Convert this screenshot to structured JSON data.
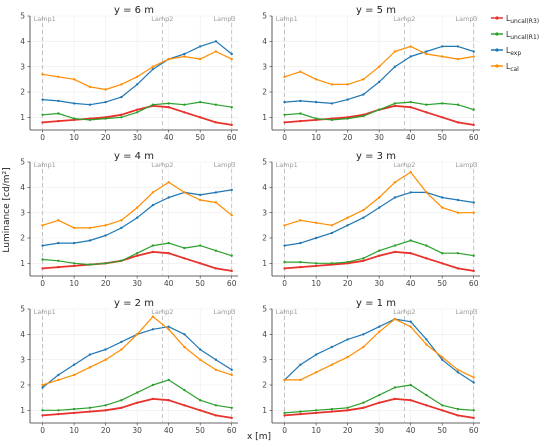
{
  "figure": {
    "ylabel": "Luminance [cd/m²]",
    "xlabel": "x [m]"
  },
  "legend": [
    {
      "key": "L_uncal_R3",
      "base": "L",
      "sub": "uncal(R3)",
      "color": "#e8312b"
    },
    {
      "key": "L_uncal_R1",
      "base": "L",
      "sub": "uncal(R1)",
      "color": "#2ca02c"
    },
    {
      "key": "L_exp",
      "base": "L",
      "sub": "exp",
      "color": "#1f77b4"
    },
    {
      "key": "L_cal",
      "base": "L",
      "sub": "cal",
      "color": "#ff8c00"
    }
  ],
  "chart_data": [
    {
      "type": "line",
      "title": "y = 6 m",
      "xlim": [
        -4,
        62
      ],
      "ylim": [
        0.5,
        5
      ],
      "x_ticks": [
        0,
        10,
        20,
        30,
        40,
        50,
        60
      ],
      "y_ticks": [
        1,
        2,
        3,
        4,
        5
      ],
      "lamps": [
        {
          "label": "Lamp1",
          "x": 0
        },
        {
          "label": "Lamp2",
          "x": 38
        },
        {
          "label": "Lamp3",
          "x": 60
        }
      ],
      "x": [
        0,
        5,
        10,
        15,
        20,
        25,
        30,
        35,
        40,
        45,
        50,
        55,
        60
      ],
      "series": [
        {
          "key": "L_uncal_R3",
          "values": [
            0.8,
            0.85,
            0.9,
            0.95,
            1.0,
            1.1,
            1.3,
            1.45,
            1.4,
            1.2,
            1.0,
            0.8,
            0.7
          ]
        },
        {
          "key": "L_uncal_R1",
          "values": [
            1.1,
            1.15,
            0.95,
            0.9,
            0.95,
            1.0,
            1.2,
            1.5,
            1.55,
            1.5,
            1.6,
            1.5,
            1.4
          ]
        },
        {
          "key": "L_exp",
          "values": [
            1.7,
            1.65,
            1.55,
            1.5,
            1.6,
            1.8,
            2.3,
            2.9,
            3.3,
            3.5,
            3.8,
            4.0,
            3.5
          ]
        },
        {
          "key": "L_cal",
          "values": [
            2.7,
            2.6,
            2.5,
            2.2,
            2.1,
            2.3,
            2.6,
            3.0,
            3.3,
            3.4,
            3.3,
            3.6,
            3.3
          ]
        }
      ]
    },
    {
      "type": "line",
      "title": "y = 5 m",
      "xlim": [
        -4,
        62
      ],
      "ylim": [
        0.5,
        5
      ],
      "x_ticks": [
        0,
        10,
        20,
        30,
        40,
        50,
        60
      ],
      "y_ticks": [
        1,
        2,
        3,
        4,
        5
      ],
      "lamps": [
        {
          "label": "Lamp1",
          "x": 0
        },
        {
          "label": "Lamp2",
          "x": 38
        },
        {
          "label": "Lamp3",
          "x": 60
        }
      ],
      "x": [
        0,
        5,
        10,
        15,
        20,
        25,
        30,
        35,
        40,
        45,
        50,
        55,
        60
      ],
      "series": [
        {
          "key": "L_uncal_R3",
          "values": [
            0.8,
            0.85,
            0.9,
            0.95,
            1.0,
            1.1,
            1.3,
            1.45,
            1.4,
            1.2,
            1.0,
            0.8,
            0.7
          ]
        },
        {
          "key": "L_uncal_R1",
          "values": [
            1.1,
            1.15,
            0.95,
            0.9,
            0.95,
            1.05,
            1.3,
            1.55,
            1.6,
            1.5,
            1.55,
            1.5,
            1.3
          ]
        },
        {
          "key": "L_exp",
          "values": [
            1.6,
            1.65,
            1.6,
            1.55,
            1.7,
            1.9,
            2.4,
            3.0,
            3.4,
            3.6,
            3.8,
            3.8,
            3.6
          ]
        },
        {
          "key": "L_cal",
          "values": [
            2.6,
            2.8,
            2.5,
            2.3,
            2.3,
            2.5,
            3.0,
            3.6,
            3.8,
            3.5,
            3.4,
            3.3,
            3.4
          ]
        }
      ]
    },
    {
      "type": "line",
      "title": "y = 4 m",
      "xlim": [
        -4,
        62
      ],
      "ylim": [
        0.5,
        5
      ],
      "x_ticks": [
        0,
        10,
        20,
        30,
        40,
        50,
        60
      ],
      "y_ticks": [
        1,
        2,
        3,
        4,
        5
      ],
      "lamps": [
        {
          "label": "Lamp1",
          "x": 0
        },
        {
          "label": "Lamp2",
          "x": 38
        },
        {
          "label": "Lamp3",
          "x": 60
        }
      ],
      "x": [
        0,
        5,
        10,
        15,
        20,
        25,
        30,
        35,
        40,
        45,
        50,
        55,
        60
      ],
      "series": [
        {
          "key": "L_uncal_R3",
          "values": [
            0.8,
            0.85,
            0.9,
            0.95,
            1.0,
            1.1,
            1.3,
            1.45,
            1.4,
            1.2,
            1.0,
            0.8,
            0.7
          ]
        },
        {
          "key": "L_uncal_R1",
          "values": [
            1.15,
            1.1,
            1.0,
            0.95,
            1.0,
            1.1,
            1.4,
            1.7,
            1.8,
            1.6,
            1.7,
            1.5,
            1.3
          ]
        },
        {
          "key": "L_exp",
          "values": [
            1.7,
            1.8,
            1.8,
            1.9,
            2.1,
            2.4,
            2.8,
            3.3,
            3.6,
            3.8,
            3.7,
            3.8,
            3.9
          ]
        },
        {
          "key": "L_cal",
          "values": [
            2.5,
            2.7,
            2.4,
            2.4,
            2.5,
            2.7,
            3.2,
            3.8,
            4.2,
            3.8,
            3.5,
            3.4,
            2.9
          ]
        }
      ]
    },
    {
      "type": "line",
      "title": "y = 3 m",
      "xlim": [
        -4,
        62
      ],
      "ylim": [
        0.5,
        5
      ],
      "x_ticks": [
        0,
        10,
        20,
        30,
        40,
        50,
        60
      ],
      "y_ticks": [
        1,
        2,
        3,
        4,
        5
      ],
      "lamps": [
        {
          "label": "Lamp1",
          "x": 0
        },
        {
          "label": "Lamp2",
          "x": 38
        },
        {
          "label": "Lamp3",
          "x": 60
        }
      ],
      "x": [
        0,
        5,
        10,
        15,
        20,
        25,
        30,
        35,
        40,
        45,
        50,
        55,
        60
      ],
      "series": [
        {
          "key": "L_uncal_R3",
          "values": [
            0.8,
            0.85,
            0.9,
            0.95,
            1.0,
            1.1,
            1.3,
            1.45,
            1.4,
            1.2,
            1.0,
            0.8,
            0.7
          ]
        },
        {
          "key": "L_uncal_R1",
          "values": [
            1.05,
            1.05,
            1.0,
            1.0,
            1.05,
            1.2,
            1.5,
            1.7,
            1.9,
            1.7,
            1.4,
            1.4,
            1.3
          ]
        },
        {
          "key": "L_exp",
          "values": [
            1.7,
            1.8,
            2.0,
            2.2,
            2.5,
            2.8,
            3.2,
            3.6,
            3.8,
            3.8,
            3.6,
            3.5,
            3.4
          ]
        },
        {
          "key": "L_cal",
          "values": [
            2.5,
            2.7,
            2.6,
            2.5,
            2.8,
            3.1,
            3.6,
            4.2,
            4.6,
            3.8,
            3.2,
            3.0,
            3.0
          ]
        }
      ]
    },
    {
      "type": "line",
      "title": "y = 2 m",
      "xlim": [
        -4,
        62
      ],
      "ylim": [
        0.5,
        5
      ],
      "x_ticks": [
        0,
        10,
        20,
        30,
        40,
        50,
        60
      ],
      "y_ticks": [
        1,
        2,
        3,
        4,
        5
      ],
      "lamps": [
        {
          "label": "Lamp1",
          "x": 0
        },
        {
          "label": "Lamp2",
          "x": 38
        },
        {
          "label": "Lamp3",
          "x": 60
        }
      ],
      "x": [
        0,
        5,
        10,
        15,
        20,
        25,
        30,
        35,
        40,
        45,
        50,
        55,
        60
      ],
      "series": [
        {
          "key": "L_uncal_R3",
          "values": [
            0.8,
            0.85,
            0.9,
            0.95,
            1.0,
            1.1,
            1.3,
            1.45,
            1.4,
            1.2,
            1.0,
            0.8,
            0.7
          ]
        },
        {
          "key": "L_uncal_R1",
          "values": [
            1.0,
            1.0,
            1.05,
            1.1,
            1.2,
            1.4,
            1.7,
            2.0,
            2.2,
            1.8,
            1.4,
            1.2,
            1.1
          ]
        },
        {
          "key": "L_exp",
          "values": [
            1.9,
            2.4,
            2.8,
            3.2,
            3.4,
            3.7,
            4.0,
            4.2,
            4.3,
            4.0,
            3.4,
            3.0,
            2.6
          ]
        },
        {
          "key": "L_cal",
          "values": [
            2.0,
            2.2,
            2.4,
            2.7,
            3.0,
            3.4,
            4.0,
            4.7,
            4.2,
            3.5,
            3.0,
            2.6,
            2.4
          ]
        }
      ]
    },
    {
      "type": "line",
      "title": "y = 1 m",
      "xlim": [
        -4,
        62
      ],
      "ylim": [
        0.5,
        5
      ],
      "x_ticks": [
        0,
        10,
        20,
        30,
        40,
        50,
        60
      ],
      "y_ticks": [
        1,
        2,
        3,
        4,
        5
      ],
      "lamps": [
        {
          "label": "Lamp1",
          "x": 0
        },
        {
          "label": "Lamp2",
          "x": 38
        },
        {
          "label": "Lamp3",
          "x": 60
        }
      ],
      "x": [
        0,
        5,
        10,
        15,
        20,
        25,
        30,
        35,
        40,
        45,
        50,
        55,
        60
      ],
      "series": [
        {
          "key": "L_uncal_R3",
          "values": [
            0.8,
            0.85,
            0.9,
            0.95,
            1.0,
            1.1,
            1.3,
            1.45,
            1.4,
            1.2,
            1.0,
            0.8,
            0.7
          ]
        },
        {
          "key": "L_uncal_R1",
          "values": [
            0.9,
            0.95,
            1.0,
            1.05,
            1.1,
            1.3,
            1.6,
            1.9,
            2.0,
            1.6,
            1.2,
            1.05,
            1.0
          ]
        },
        {
          "key": "L_exp",
          "values": [
            2.2,
            2.8,
            3.2,
            3.5,
            3.8,
            4.0,
            4.3,
            4.6,
            4.5,
            3.8,
            3.0,
            2.5,
            2.1
          ]
        },
        {
          "key": "L_cal",
          "values": [
            2.2,
            2.2,
            2.5,
            2.8,
            3.1,
            3.5,
            4.1,
            4.6,
            4.3,
            3.6,
            3.1,
            2.6,
            2.3
          ]
        }
      ]
    }
  ]
}
